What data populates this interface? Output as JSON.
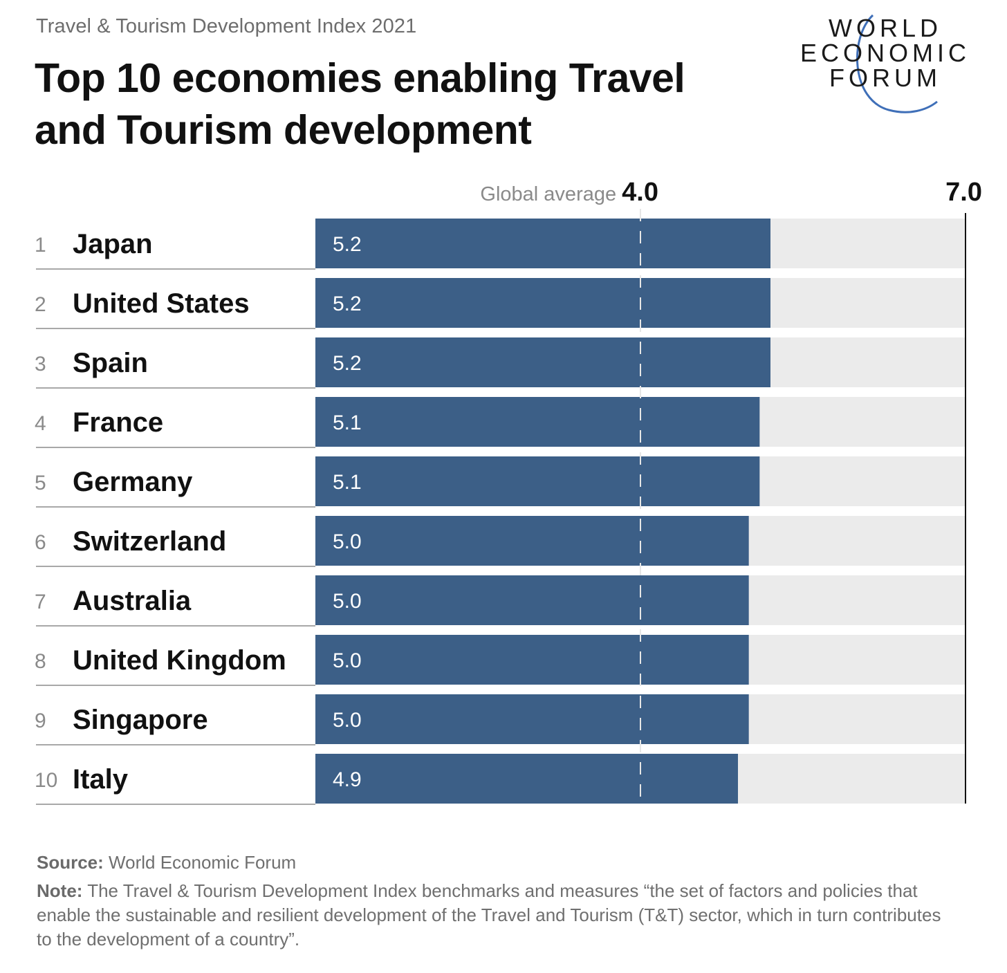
{
  "header": {
    "supertitle": "Travel & Tourism Development Index 2021",
    "title": "Top 10 economies enabling Travel and Tourism development"
  },
  "logo": {
    "line1": "WORLD",
    "line2": "ECONOMIC",
    "line3": "FORUM",
    "accent_color": "#3f6fb8"
  },
  "chart_data": {
    "type": "bar",
    "orientation": "horizontal",
    "ranks": [
      "1",
      "2",
      "3",
      "4",
      "5",
      "6",
      "7",
      "8",
      "9",
      "10"
    ],
    "categories": [
      "Japan",
      "United States",
      "Spain",
      "France",
      "Germany",
      "Switzerland",
      "Australia",
      "United Kingdom",
      "Singapore",
      "Italy"
    ],
    "values": [
      5.2,
      5.2,
      5.2,
      5.1,
      5.1,
      5.0,
      5.0,
      5.0,
      5.0,
      4.9
    ],
    "value_labels": [
      "5.2",
      "5.2",
      "5.2",
      "5.1",
      "5.1",
      "5.0",
      "5.0",
      "5.0",
      "5.0",
      "4.9"
    ],
    "xlim": [
      1.0,
      7.0
    ],
    "max_label": "7.0",
    "reference_line": {
      "label": "Global average",
      "value": 4.0,
      "value_label": "4.0"
    },
    "bar_color": "#3c5f87",
    "track_color": "#ebebeb",
    "grid": false,
    "legend": "none"
  },
  "footer": {
    "source_label": "Source:",
    "source_text": "World Economic Forum",
    "note_label": "Note:",
    "note_text": "The Travel & Tourism Development Index benchmarks and measures “the set of factors and policies that enable the sustainable and resilient development of the Travel and Tourism (T&T) sector, which in turn contributes to the development of a country”."
  }
}
